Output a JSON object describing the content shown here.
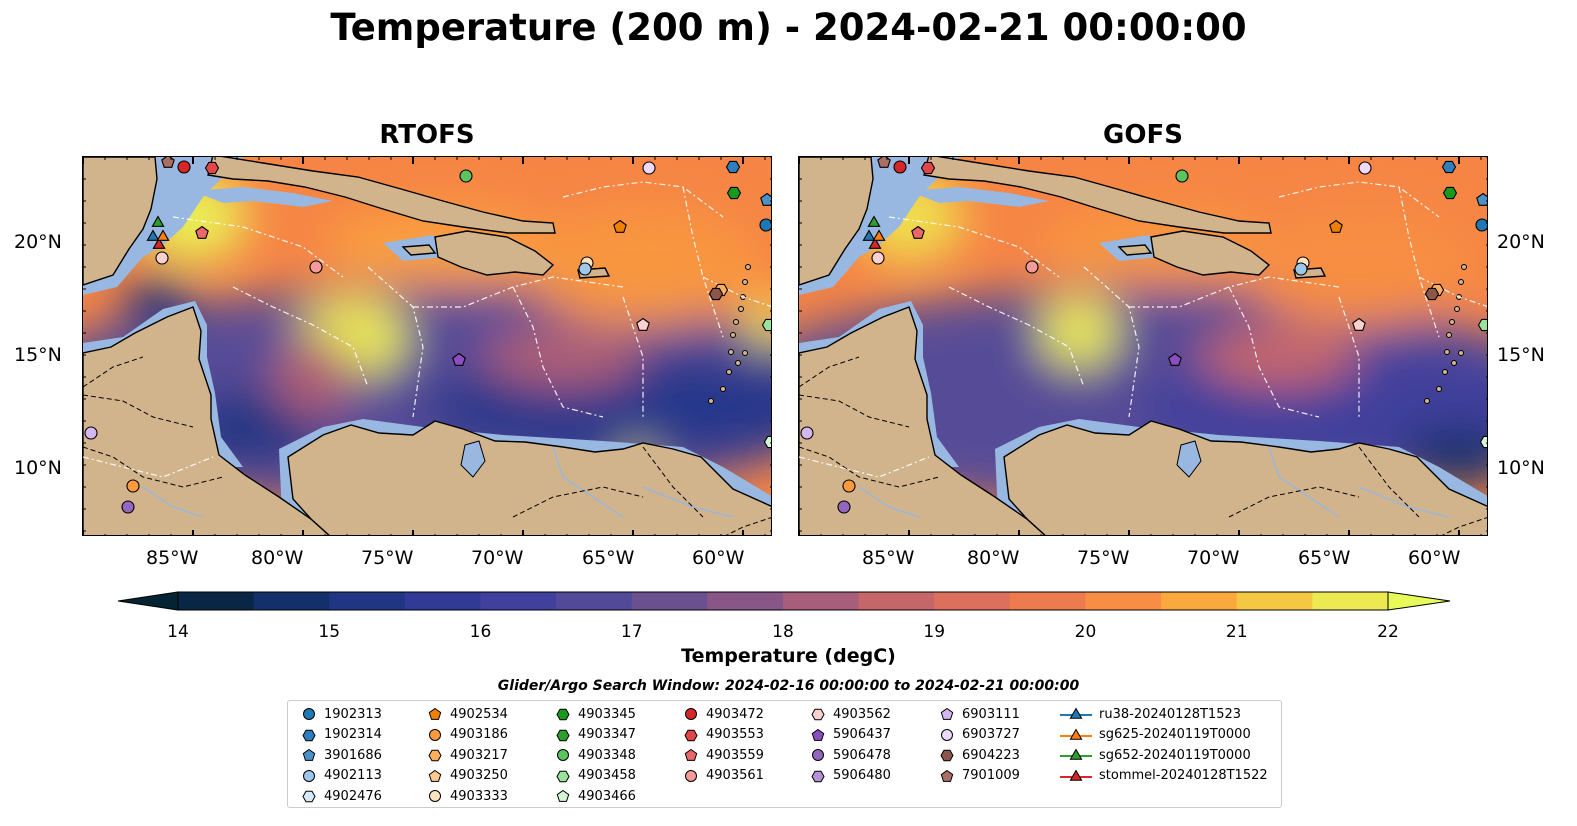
{
  "title": "Temperature (200 m) - 2024-02-21 00:00:00",
  "panels": [
    {
      "title": "RTOFS"
    },
    {
      "title": "GOFS"
    }
  ],
  "axes": {
    "x_ticks": [
      "85°W",
      "80°W",
      "75°W",
      "70°W",
      "65°W",
      "60°W"
    ],
    "y_ticks": [
      "20°N",
      "15°N",
      "10°N"
    ]
  },
  "colorbar": {
    "label": "Temperature (degC)",
    "ticks": [
      "14",
      "15",
      "16",
      "17",
      "18",
      "19",
      "20",
      "21",
      "22"
    ],
    "range": [
      14,
      22
    ],
    "colormap": "thermal",
    "extend": "both"
  },
  "legend": {
    "title": "Glider/Argo Search Window: 2024-02-16 00:00:00 to 2024-02-21 00:00:00",
    "columns": [
      [
        {
          "label": "1902313",
          "marker": "circle",
          "color": "#1f77b4"
        },
        {
          "label": "1902314",
          "marker": "hexagon",
          "color": "#2e7fc0"
        },
        {
          "label": "3901686",
          "marker": "pentagon",
          "color": "#4a90c9"
        },
        {
          "label": "4902113",
          "marker": "circle",
          "color": "#9ec8ea"
        },
        {
          "label": "4902476",
          "marker": "hexagon",
          "color": "#d6e9f8"
        }
      ],
      [
        {
          "label": "4902534",
          "marker": "pentagon",
          "color": "#f07f00"
        },
        {
          "label": "4903186",
          "marker": "circle",
          "color": "#ff9a3c"
        },
        {
          "label": "4903217",
          "marker": "hexagon",
          "color": "#ffb05c"
        },
        {
          "label": "4903250",
          "marker": "pentagon",
          "color": "#ffc98f"
        },
        {
          "label": "4903333",
          "marker": "circle",
          "color": "#ffe2c2"
        }
      ],
      [
        {
          "label": "4903345",
          "marker": "hexagon",
          "color": "#1a9a1a"
        },
        {
          "label": "4903347",
          "marker": "hexagon",
          "color": "#2ca02c"
        },
        {
          "label": "4903348",
          "marker": "circle",
          "color": "#5cc45c"
        },
        {
          "label": "4903458",
          "marker": "hexagon",
          "color": "#9be39b"
        },
        {
          "label": "4903466",
          "marker": "pentagon",
          "color": "#d4f7d4"
        }
      ],
      [
        {
          "label": "4903472",
          "marker": "circle",
          "color": "#d62728"
        },
        {
          "label": "4903553",
          "marker": "hexagon",
          "color": "#e24646"
        },
        {
          "label": "4903559",
          "marker": "pentagon",
          "color": "#ec6868"
        },
        {
          "label": "4903561",
          "marker": "circle",
          "color": "#f59a9a"
        }
      ],
      [
        {
          "label": "4903562",
          "marker": "hexagon",
          "color": "#fbd0d0"
        },
        {
          "label": "5906437",
          "marker": "pentagon",
          "color": "#8a4fbf"
        },
        {
          "label": "5906478",
          "marker": "circle",
          "color": "#9467bd"
        },
        {
          "label": "5906480",
          "marker": "hexagon",
          "color": "#b394d9"
        }
      ],
      [
        {
          "label": "6903111",
          "marker": "pentagon",
          "color": "#d3b8ef"
        },
        {
          "label": "6903727",
          "marker": "circle",
          "color": "#ecd9fb"
        },
        {
          "label": "6904223",
          "marker": "hexagon",
          "color": "#8c564b"
        },
        {
          "label": "7901009",
          "marker": "pentagon",
          "color": "#a86f62"
        }
      ],
      [
        {
          "label": "ru38-20240128T1523",
          "marker": "triangle-line",
          "color": "#1f77b4"
        },
        {
          "label": "sg625-20240119T0000",
          "marker": "triangle-line",
          "color": "#ff7f0e"
        },
        {
          "label": "sg652-20240119T0000",
          "marker": "triangle-line",
          "color": "#2ca02c"
        },
        {
          "label": "stommel-20240128T1522",
          "marker": "triangle-line",
          "color": "#d62728"
        }
      ]
    ]
  }
}
